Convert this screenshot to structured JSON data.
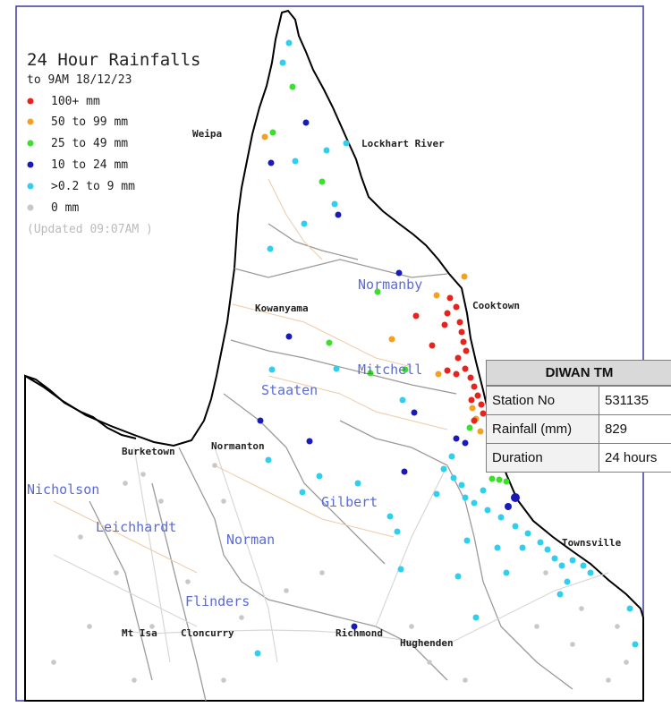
{
  "title": "24 Hour Rainfalls",
  "subtitle": "to 9AM 18/12/23",
  "legend": [
    {
      "label": "100+ mm",
      "color": "#e8221c"
    },
    {
      "label": "50  to 99 mm",
      "color": "#f5a021"
    },
    {
      "label": "25  to 49 mm",
      "color": "#3be02b"
    },
    {
      "label": "10  to 24 mm",
      "color": "#1a1ab8"
    },
    {
      "label": ">0.2 to 9 mm",
      "color": "#2fd0ef"
    },
    {
      "label": "0 mm",
      "color": "#c8c8c8"
    }
  ],
  "updated": "(Updated 09:07AM  )",
  "towns": {
    "weipa": "Weipa",
    "lockhart_river": "Lockhart River",
    "kowanyama": "Kowanyama",
    "cooktown": "Cooktown",
    "burketown": "Burketown",
    "normanton": "Normanton",
    "townsville": "Townsville",
    "mt_isa": "Mt Isa",
    "cloncurry": "Cloncurry",
    "richmond": "Richmond",
    "hughenden": "Hughenden"
  },
  "basins": {
    "normanby": "Normanby",
    "mitchell": "Mitchell",
    "staaten": "Staaten",
    "gilbert": "Gilbert",
    "nicholson": "Nicholson",
    "leichhardt": "Leichhardt",
    "norman": "Norman",
    "flinders": "Flinders"
  },
  "popup": {
    "station_name": "DIWAN TM",
    "station_no_label": "Station No",
    "station_no": "531135",
    "rainfall_label": "Rainfall (mm)",
    "rainfall": "829",
    "duration_label": "Duration",
    "duration": "24 hours"
  },
  "colors": {
    "land": "#ffffff",
    "coast": "#000000",
    "frame": "#3a3aa0",
    "basin_boundary": "#9a9a9a",
    "river": "#f1caa6"
  }
}
